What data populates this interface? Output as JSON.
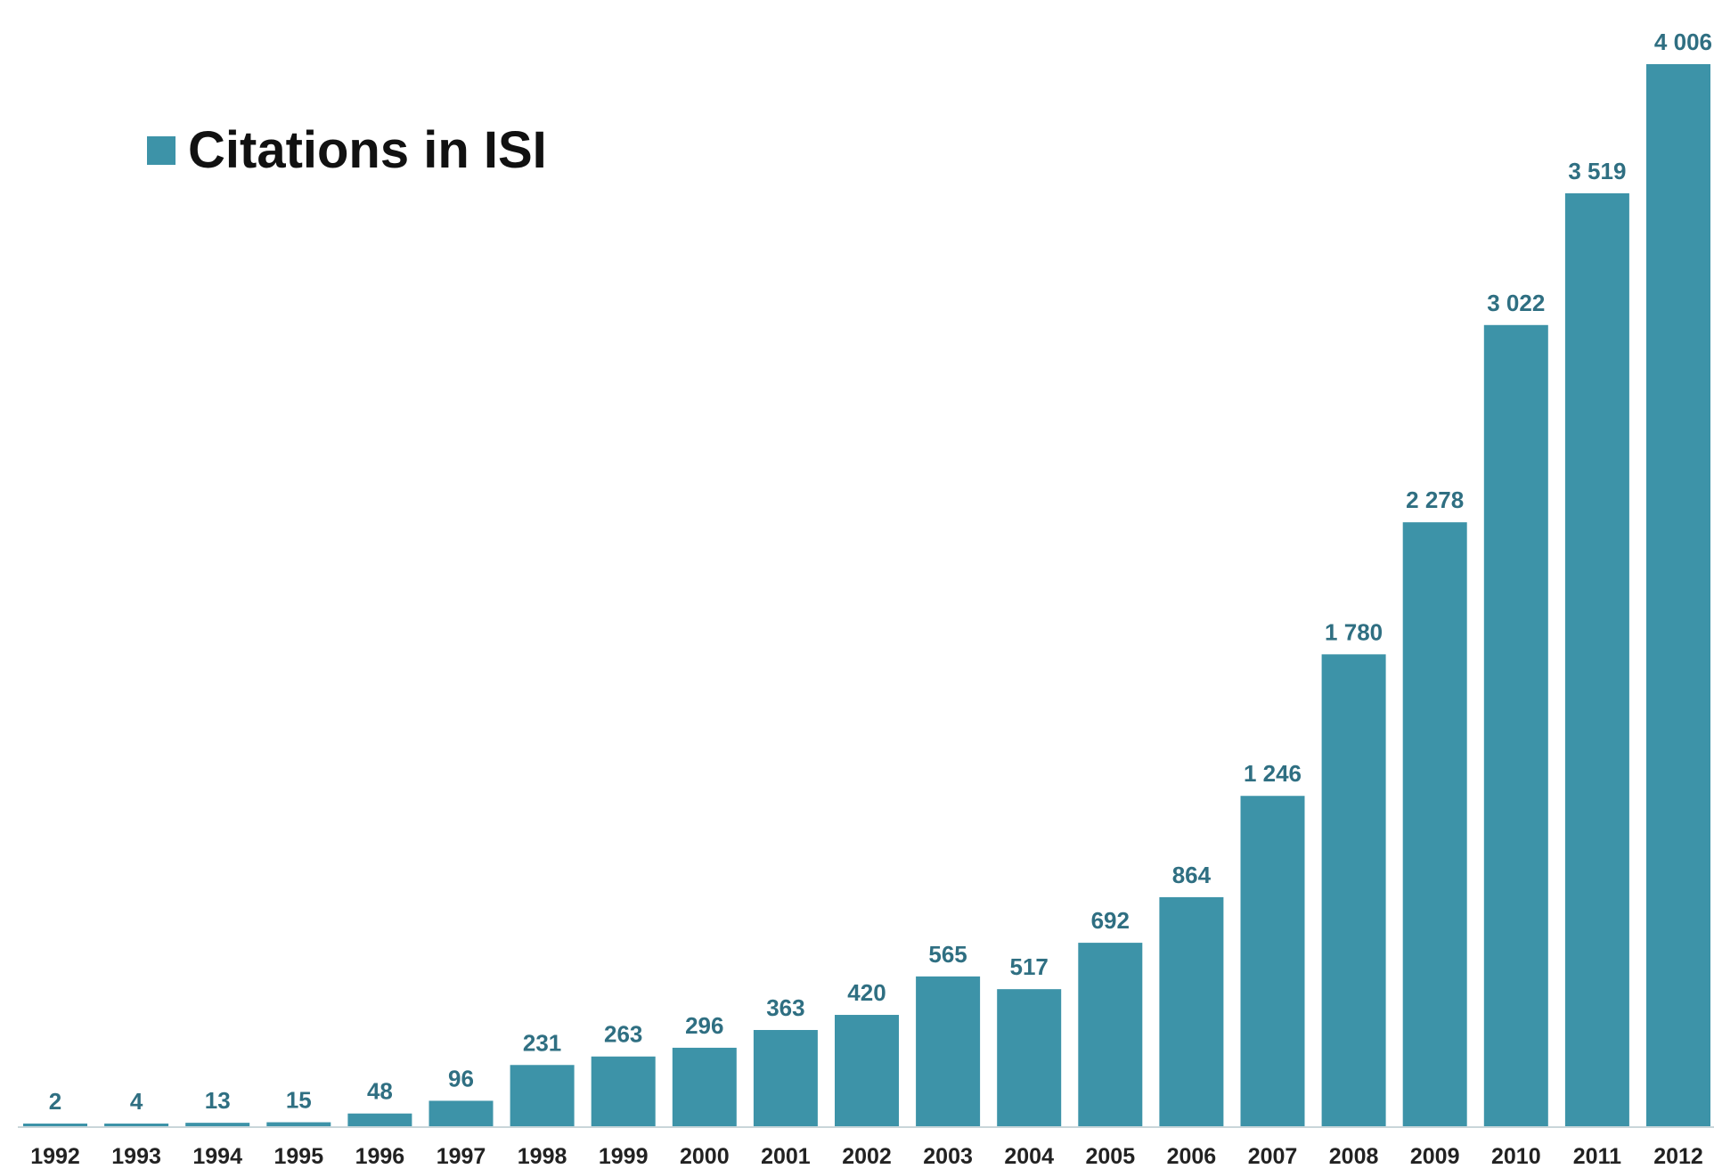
{
  "colors": {
    "bar": "#3d93a8",
    "value_label": "#2f6f82",
    "tick_label": "#222222",
    "baseline": "#c9d6da"
  },
  "legend": {
    "label": "Citations in ISI",
    "position": "top-left"
  },
  "chart_data": {
    "type": "bar",
    "categories": [
      "1992",
      "1993",
      "1994",
      "1995",
      "1996",
      "1997",
      "1998",
      "1999",
      "2000",
      "2001",
      "2002",
      "2003",
      "2004",
      "2005",
      "2006",
      "2007",
      "2008",
      "2009",
      "2010",
      "2011",
      "2012"
    ],
    "series": [
      {
        "name": "Citations in ISI",
        "values": [
          2,
          4,
          13,
          15,
          48,
          96,
          231,
          263,
          296,
          363,
          420,
          565,
          517,
          692,
          864,
          1246,
          1780,
          2278,
          3022,
          3519,
          4006
        ]
      }
    ],
    "value_labels": [
      "2",
      "4",
      "13",
      "15",
      "48",
      "96",
      "231",
      "263",
      "296",
      "363",
      "420",
      "565",
      "517",
      "692",
      "864",
      "1 246",
      "1 780",
      "2 278",
      "3 022",
      "3 519",
      "4 006"
    ],
    "xlabel": "",
    "ylabel": "",
    "ylim": [
      0,
      4006
    ],
    "grid": false,
    "legend": "top-left"
  }
}
